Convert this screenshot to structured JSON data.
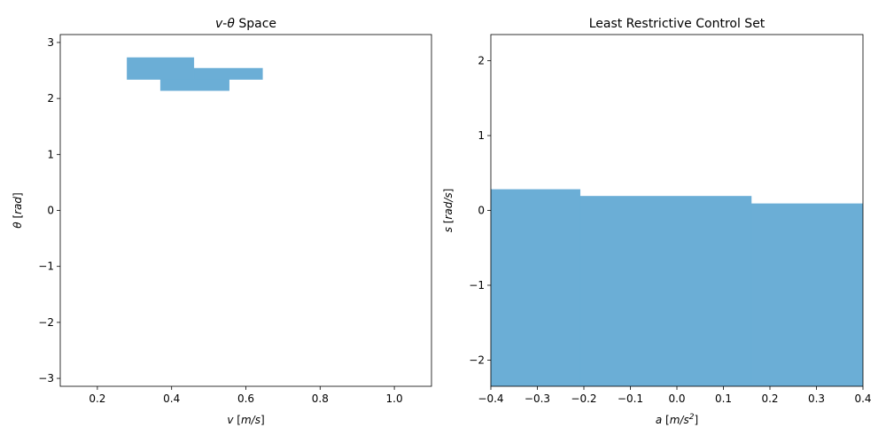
{
  "chart_data": [
    {
      "type": "heatmap",
      "title_parts": [
        {
          "text": "v",
          "italic": true
        },
        {
          "text": "-",
          "italic": false
        },
        {
          "text": "θ",
          "italic": true
        },
        {
          "text": " Space",
          "italic": false
        }
      ],
      "xlabel_parts": [
        {
          "text": "v",
          "italic": true
        },
        {
          "text": " [",
          "italic": false
        },
        {
          "text": "m/s",
          "italic": true
        },
        {
          "text": "]",
          "italic": false
        }
      ],
      "ylabel_parts": [
        {
          "text": "θ",
          "italic": true
        },
        {
          "text": " [",
          "italic": false
        },
        {
          "text": "rad",
          "italic": true
        },
        {
          "text": "]",
          "italic": false
        }
      ],
      "xlim": [
        0.1,
        1.1
      ],
      "ylim": [
        -3.1416,
        3.1416
      ],
      "xticks": [
        0.2,
        0.4,
        0.6,
        0.8,
        1.0
      ],
      "xtick_labels": [
        "0.2",
        "0.4",
        "0.6",
        "0.8",
        "1.0"
      ],
      "yticks": [
        -3,
        -2,
        -1,
        0,
        1,
        2,
        3
      ],
      "ytick_labels": [
        "−3",
        "−2",
        "−1",
        "0",
        "1",
        "2",
        "3"
      ],
      "fill_color": "#6baed6",
      "regions": [
        {
          "x0": 0.28,
          "x1": 0.46,
          "y0": 2.34,
          "y1": 2.73
        },
        {
          "x0": 0.46,
          "x1": 0.645,
          "y0": 2.34,
          "y1": 2.54
        },
        {
          "x0": 0.37,
          "x1": 0.555,
          "y0": 2.14,
          "y1": 2.34
        }
      ]
    },
    {
      "type": "area",
      "title_parts": [
        {
          "text": "Least Restrictive Control Set",
          "italic": false
        }
      ],
      "xlabel_parts": [
        {
          "text": "a",
          "italic": true
        },
        {
          "text": " [",
          "italic": false
        },
        {
          "text": "m/s",
          "italic": true
        },
        {
          "text": "2",
          "italic": true,
          "sup": true
        },
        {
          "text": "]",
          "italic": false
        }
      ],
      "ylabel_parts": [
        {
          "text": "s",
          "italic": true
        },
        {
          "text": " [",
          "italic": false
        },
        {
          "text": "rad/s",
          "italic": true
        },
        {
          "text": "]",
          "italic": false
        }
      ],
      "xlim": [
        -0.4,
        0.4
      ],
      "ylim": [
        -2.35,
        2.35
      ],
      "xticks": [
        -0.4,
        -0.3,
        -0.2,
        -0.1,
        0.0,
        0.1,
        0.2,
        0.3,
        0.4
      ],
      "xtick_labels": [
        "−0.4",
        "−0.3",
        "−0.2",
        "−0.1",
        "0.0",
        "0.1",
        "0.2",
        "0.3",
        "0.4"
      ],
      "yticks": [
        -2,
        -1,
        0,
        1,
        2
      ],
      "ytick_labels": [
        "−2",
        "−1",
        "0",
        "1",
        "2"
      ],
      "fill_color": "#6baed6",
      "regions": [
        {
          "x0": -0.4,
          "x1": -0.208,
          "y0": -2.35,
          "y1": 0.28
        },
        {
          "x0": -0.208,
          "x1": 0.16,
          "y0": -2.35,
          "y1": 0.19
        },
        {
          "x0": 0.16,
          "x1": 0.4,
          "y0": -2.35,
          "y1": 0.09
        }
      ]
    }
  ]
}
